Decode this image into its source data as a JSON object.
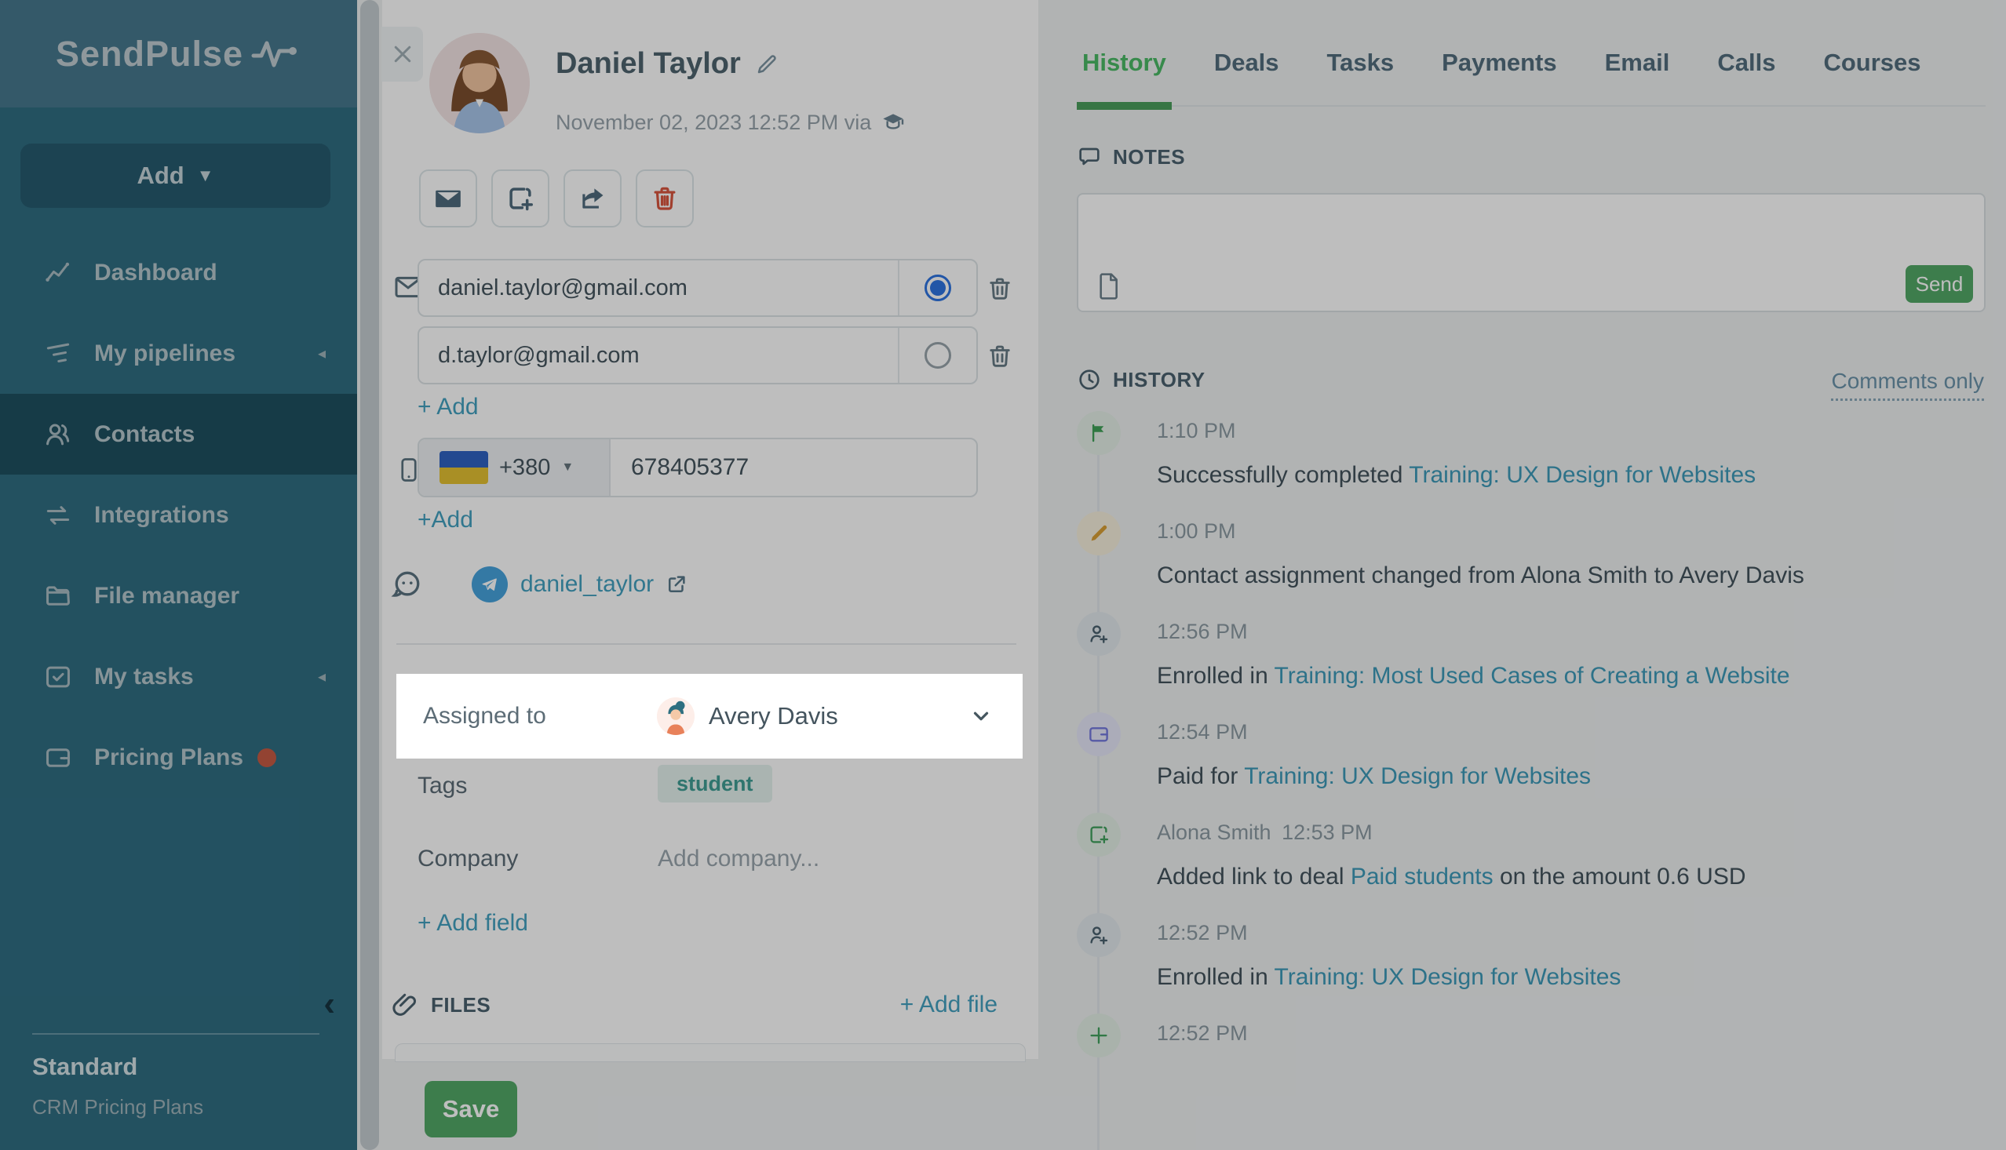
{
  "theme": {
    "sidebar_bg": "#2f6d82",
    "sidebar_band": "#47788d",
    "sidebar_active": "#1e5060",
    "accent_green": "#4aba65",
    "button_green": "#52a867",
    "link_teal": "#43a0bf",
    "history_link": "#3d9ab8",
    "danger_red": "#d9553e",
    "radio_blue": "#2e74e0",
    "telegram_blue": "#47a3dd",
    "overlay": "rgba(0,0,0,0.255)",
    "tag_bg": "#e4f2ee",
    "tag_text": "#3f9d94"
  },
  "sidebar": {
    "logo": "SendPulse",
    "add_label": "Add",
    "items": [
      {
        "label": "Dashboard",
        "icon": "dashboard-icon",
        "active": false,
        "caret": false,
        "dot": false
      },
      {
        "label": "My pipelines",
        "icon": "pipelines-icon",
        "active": false,
        "caret": true,
        "dot": false
      },
      {
        "label": "Contacts",
        "icon": "contacts-icon",
        "active": true,
        "caret": false,
        "dot": false
      },
      {
        "label": "Integrations",
        "icon": "integrations-icon",
        "active": false,
        "caret": false,
        "dot": false
      },
      {
        "label": "File manager",
        "icon": "folder-icon",
        "active": false,
        "caret": false,
        "dot": false
      },
      {
        "label": "My tasks",
        "icon": "tasks-icon",
        "active": false,
        "caret": true,
        "dot": false
      },
      {
        "label": "Pricing Plans",
        "icon": "pricing-icon",
        "active": false,
        "caret": false,
        "dot": true
      }
    ],
    "footer": {
      "plan": "Standard",
      "plan_link": "CRM Pricing Plans"
    }
  },
  "contact": {
    "name": "Daniel Taylor",
    "created": "November 02, 2023 12:52 PM via",
    "emails": [
      {
        "value": "daniel.taylor@gmail.com",
        "primary": true
      },
      {
        "value": "d.taylor@gmail.com",
        "primary": false
      }
    ],
    "email_add_label": "+ Add",
    "phone": {
      "country": "Ukraine",
      "dial_code": "+380",
      "number": "678405377",
      "add_label": "+Add"
    },
    "telegram": {
      "username": "daniel_taylor"
    },
    "assigned": {
      "label": "Assigned to",
      "value": "Avery Davis"
    },
    "tags_label": "Tags",
    "tags": [
      "student"
    ],
    "company_label": "Company",
    "company_placeholder": "Add company...",
    "add_field_label": "+ Add field",
    "files_label": "FILES",
    "add_file_label": "+ Add file",
    "save_label": "Save"
  },
  "tabs": {
    "items": [
      "History",
      "Deals",
      "Tasks",
      "Payments",
      "Email",
      "Calls",
      "Courses"
    ],
    "active": "History"
  },
  "notes": {
    "label": "NOTES",
    "send_label": "Send"
  },
  "history": {
    "label": "HISTORY",
    "filter_label": "Comments only",
    "entries": [
      {
        "icon": "flag-icon",
        "time": "1:10 PM",
        "author": "",
        "text": "Successfully completed ",
        "link": "Training: UX Design for Websites",
        "suffix": ""
      },
      {
        "icon": "pencil-icon",
        "time": "1:00 PM",
        "author": "",
        "text": "Contact assignment changed from Alona Smith to Avery Davis",
        "link": "",
        "suffix": ""
      },
      {
        "icon": "user-plus-icon",
        "time": "12:56 PM",
        "author": "",
        "text": "Enrolled in ",
        "link": "Training: Most Used Cases of Creating a Website",
        "suffix": ""
      },
      {
        "icon": "wallet-icon",
        "time": "12:54 PM",
        "author": "",
        "text": "Paid for ",
        "link": "Training: UX Design for Websites",
        "suffix": ""
      },
      {
        "icon": "deal-plus-icon",
        "time": "12:53 PM",
        "author": "Alona Smith",
        "text": "Added link to deal ",
        "link": "Paid students",
        "suffix": " on the amount 0.6 USD"
      },
      {
        "icon": "user-plus-icon",
        "time": "12:52 PM",
        "author": "",
        "text": "Enrolled in ",
        "link": "Training: UX Design for Websites",
        "suffix": ""
      },
      {
        "icon": "plus-icon",
        "time": "12:52 PM",
        "author": "",
        "text": "",
        "link": "",
        "suffix": ""
      }
    ]
  }
}
